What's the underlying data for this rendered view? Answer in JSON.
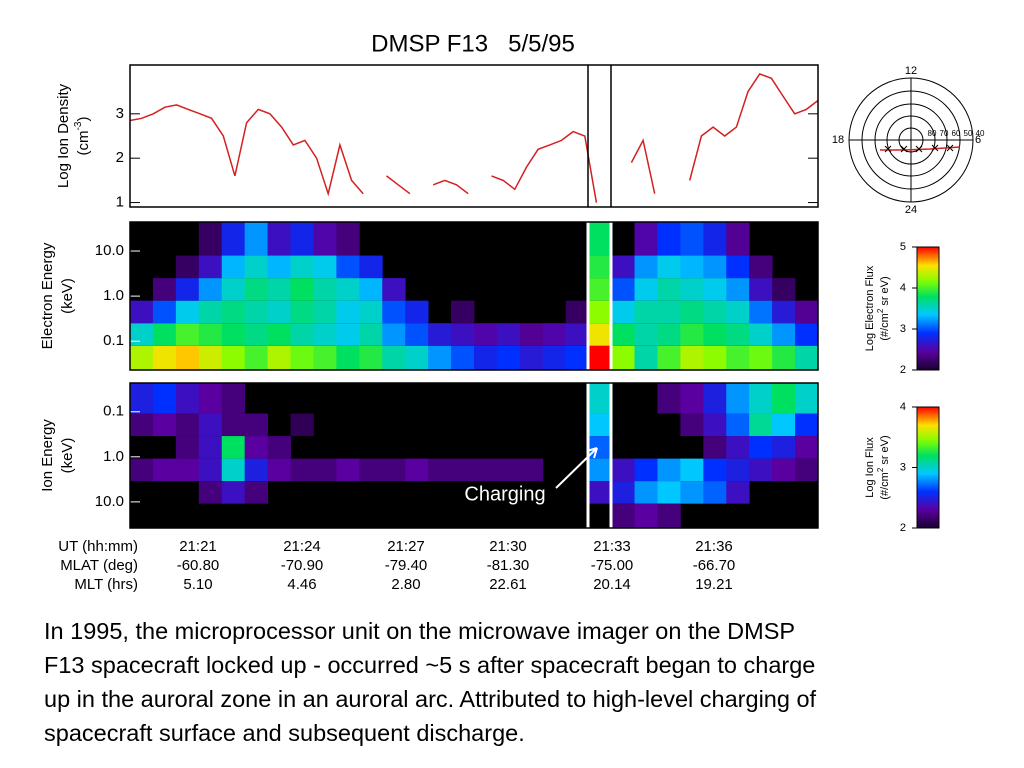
{
  "title": "DMSP F13   5/5/95",
  "chart_data": [
    {
      "type": "line",
      "ylabel": "Log Ion Density",
      "yunit": [
        "(cm",
        "-3",
        ")"
      ],
      "ylim": [
        0.9,
        4.1
      ],
      "yticks": [
        1,
        2,
        3
      ],
      "series": [
        {
          "color": "#d42020",
          "values": [
            2.85,
            2.9,
            3.0,
            3.15,
            3.2,
            3.1,
            3.0,
            2.9,
            2.5,
            1.6,
            2.8,
            3.1,
            3.0,
            2.7,
            2.3,
            2.4,
            2.0,
            1.2,
            2.3,
            1.5,
            1.2,
            null,
            1.6,
            1.4,
            1.2,
            null,
            1.4,
            1.5,
            1.4,
            1.2,
            null,
            1.6,
            1.5,
            1.3,
            1.8,
            2.2,
            2.3,
            2.4,
            2.6,
            2.5,
            1.0,
            null,
            null,
            1.9,
            2.4,
            1.2,
            null,
            null,
            1.5,
            2.5,
            2.7,
            2.5,
            2.7,
            3.5,
            3.9,
            3.8,
            3.4,
            3.0,
            3.1,
            3.3
          ]
        }
      ]
    },
    {
      "type": "heatmap",
      "ylabel": "Electron Energy",
      "yunit": "(keV)",
      "log": true,
      "ylim": [
        0.023,
        44
      ],
      "yticks": [
        {
          "value": 0.1,
          "label": "0.1"
        },
        {
          "value": 1,
          "label": "1.0"
        },
        {
          "value": 10,
          "label": "10.0"
        }
      ],
      "y": [
        0.045,
        0.14,
        0.45,
        1.4,
        4.5,
        14
      ],
      "values": [
        [
          4.3,
          4.5,
          4.6,
          4.4,
          4.2,
          4.0,
          4.3,
          4.1,
          4.0,
          3.8,
          3.9,
          3.6,
          3.5,
          3.2,
          3.0,
          2.8,
          2.9,
          2.7,
          2.8,
          2.9,
          5.0,
          4.2,
          3.6,
          4.0,
          4.3,
          4.2,
          4.0,
          4.1,
          3.9,
          3.6
        ],
        [
          3.5,
          3.8,
          4.0,
          3.9,
          3.8,
          3.7,
          3.8,
          3.6,
          3.5,
          3.4,
          3.6,
          3.2,
          3.0,
          2.7,
          2.6,
          2.5,
          2.6,
          2.4,
          2.5,
          2.6,
          4.5,
          3.8,
          3.6,
          3.7,
          3.9,
          3.8,
          3.7,
          3.5,
          3.2,
          2.9
        ],
        [
          2.6,
          3.0,
          3.4,
          3.6,
          3.7,
          3.6,
          3.5,
          3.7,
          3.6,
          3.4,
          3.5,
          3.0,
          2.8,
          null,
          2.2,
          null,
          null,
          null,
          null,
          2.2,
          4.2,
          3.4,
          3.6,
          3.6,
          3.7,
          3.6,
          3.5,
          3.1,
          2.7,
          2.4
        ],
        [
          null,
          2.3,
          2.8,
          3.2,
          3.5,
          3.7,
          3.6,
          3.8,
          3.6,
          3.5,
          3.3,
          2.6,
          null,
          null,
          null,
          null,
          null,
          null,
          null,
          null,
          4.0,
          3.0,
          3.4,
          3.6,
          3.5,
          3.4,
          3.2,
          2.6,
          2.2,
          null
        ],
        [
          null,
          null,
          2.2,
          2.6,
          3.3,
          3.5,
          3.3,
          3.5,
          3.4,
          3.0,
          2.8,
          null,
          null,
          null,
          null,
          null,
          null,
          null,
          null,
          null,
          3.9,
          2.6,
          3.2,
          3.4,
          3.3,
          3.2,
          2.9,
          2.3,
          null,
          null
        ],
        [
          null,
          null,
          null,
          2.2,
          2.8,
          3.2,
          2.6,
          2.8,
          2.5,
          2.3,
          null,
          null,
          null,
          null,
          null,
          null,
          null,
          null,
          null,
          null,
          3.8,
          null,
          2.5,
          2.9,
          3.0,
          2.8,
          2.4,
          null,
          null,
          null
        ]
      ],
      "colorbar": {
        "label": "Log Electron Flux",
        "unit": [
          "(#/cm",
          "2",
          " sr eV)"
        ],
        "lim": [
          2,
          5
        ],
        "ticks": [
          2,
          3,
          4,
          5
        ]
      }
    },
    {
      "type": "heatmap",
      "ylabel": "Ion Energy",
      "yunit": "(keV)",
      "log": true,
      "y_reversed": true,
      "ylim": [
        0.023,
        38
      ],
      "yticks": [
        {
          "value": 0.1,
          "label": "0.1"
        },
        {
          "value": 1,
          "label": "1.0"
        },
        {
          "value": 10,
          "label": "10.0"
        }
      ],
      "y": [
        0.06,
        0.2,
        0.6,
        2,
        6,
        20
      ],
      "values": [
        [
          2.5,
          2.6,
          2.4,
          2.3,
          2.2,
          null,
          null,
          null,
          null,
          null,
          null,
          null,
          null,
          null,
          null,
          null,
          null,
          null,
          null,
          null,
          3.0,
          null,
          null,
          2.2,
          2.3,
          2.5,
          2.8,
          3.0,
          3.2,
          3.0
        ],
        [
          2.2,
          2.3,
          2.2,
          2.4,
          2.2,
          2.2,
          null,
          2.1,
          null,
          null,
          null,
          null,
          null,
          null,
          null,
          null,
          null,
          null,
          null,
          null,
          2.9,
          null,
          null,
          null,
          2.2,
          2.4,
          2.7,
          3.1,
          2.9,
          2.6
        ],
        [
          null,
          null,
          2.2,
          2.4,
          3.2,
          2.3,
          2.2,
          null,
          null,
          null,
          null,
          null,
          null,
          null,
          null,
          null,
          null,
          null,
          null,
          null,
          2.7,
          null,
          null,
          null,
          null,
          2.2,
          2.4,
          2.6,
          2.5,
          2.3
        ],
        [
          2.2,
          2.3,
          2.3,
          2.4,
          3.0,
          2.5,
          2.3,
          2.2,
          2.2,
          2.3,
          2.2,
          2.2,
          2.3,
          2.2,
          2.2,
          2.2,
          2.2,
          2.2,
          null,
          null,
          2.8,
          2.4,
          2.6,
          2.8,
          2.9,
          2.6,
          2.5,
          2.4,
          2.3,
          2.2
        ],
        [
          null,
          null,
          null,
          2.2,
          2.4,
          2.2,
          null,
          null,
          null,
          null,
          null,
          null,
          null,
          null,
          null,
          null,
          null,
          null,
          null,
          null,
          2.4,
          2.5,
          2.8,
          2.9,
          2.8,
          2.7,
          2.4,
          null,
          null,
          null
        ],
        [
          null,
          null,
          null,
          null,
          null,
          null,
          null,
          null,
          null,
          null,
          null,
          null,
          null,
          null,
          null,
          null,
          null,
          null,
          null,
          null,
          null,
          2.2,
          2.3,
          2.2,
          null,
          null,
          null,
          null,
          null,
          null
        ]
      ],
      "annotation": "Charging",
      "colorbar": {
        "label": "Log Ion Flux",
        "unit": [
          "(#/cm",
          "2",
          " sr eV)"
        ],
        "lim": [
          2,
          4
        ],
        "ticks": [
          2,
          3,
          4
        ]
      }
    }
  ],
  "time_table": {
    "rows": [
      {
        "label": "UT (hh:mm)",
        "values": [
          "21:21",
          "21:24",
          "21:27",
          "21:30",
          "21:33",
          "21:36"
        ]
      },
      {
        "label": "MLAT (deg)",
        "values": [
          "-60.80",
          "-70.90",
          "-79.40",
          "-81.30",
          "-75.00",
          "-66.70"
        ]
      },
      {
        "label": "MLT (hrs)",
        "values": [
          "5.10",
          "4.46",
          "2.80",
          "22.61",
          "20.14",
          "19.21"
        ]
      }
    ]
  },
  "dial": {
    "hours": [
      "12",
      "18",
      "6",
      "24"
    ],
    "latitudes": [
      "80",
      "70",
      "60",
      "50",
      "40"
    ]
  },
  "caption": [
    "In 1995, the microprocessor unit on the microwave imager on the DMSP",
    "F13 spacecraft locked up - occurred ~5 s after spacecraft began to charge",
    "up in the auroral zone in an auroral arc. Attributed to high-level charging of",
    "spacecraft surface and subsequent discharge."
  ]
}
